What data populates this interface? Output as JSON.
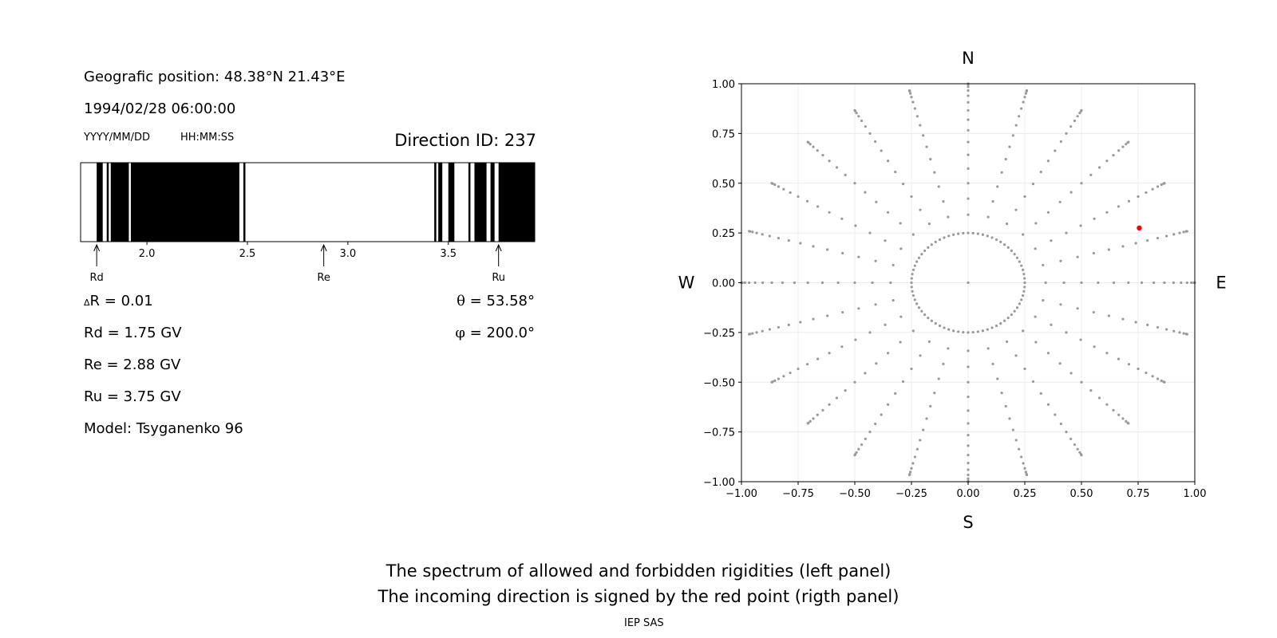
{
  "left_panel": {
    "position": "Geografic position: 48.38°N 21.43°E",
    "datetime": "1994/02/28 06:00:00",
    "date_format": "YYYY/MM/DD",
    "time_format": "HH:MM:SS",
    "direction_id": "Direction ID: 237",
    "delta_r": {
      "symbol": "Δ",
      "text": "R = 0.01"
    },
    "theta": {
      "symbol": "θ",
      "text": " = 53.58°"
    },
    "phi": {
      "symbol": "φ",
      "text": " = 200.0°"
    },
    "rd": "Rd = 1.75 GV",
    "re": "Re = 2.88 GV",
    "ru": "Ru = 3.75 GV",
    "model": "Model: Tsyganenko 96"
  },
  "footer": {
    "line1": "The spectrum of allowed and forbidden rigidities (left panel)",
    "line2": "The incoming direction is signed by the red point (rigth panel)",
    "credit": "IEP SAS"
  },
  "colors": {
    "forbidden": "#000000",
    "allowed": "#ffffff",
    "grid_points": "#999999",
    "selected_point": "#ff0000"
  },
  "chart_data": [
    {
      "type": "bar",
      "name": "rigidity-spectrum",
      "xlim": [
        1.67,
        3.93
      ],
      "ticks": [
        2.0,
        2.5,
        3.0,
        3.5
      ],
      "tick_labels": [
        "2.0",
        "2.5",
        "3.0",
        "3.5"
      ],
      "forbidden_bands": [
        [
          1.75,
          1.78
        ],
        [
          1.8,
          1.81
        ],
        [
          1.82,
          1.91
        ],
        [
          1.92,
          2.46
        ],
        [
          2.48,
          2.49
        ],
        [
          3.43,
          3.44
        ],
        [
          3.45,
          3.47
        ],
        [
          3.5,
          3.53
        ],
        [
          3.6,
          3.61
        ],
        [
          3.63,
          3.69
        ],
        [
          3.71,
          3.73
        ],
        [
          3.75,
          3.93
        ]
      ],
      "markers": [
        {
          "label": "Rd",
          "value": 1.75
        },
        {
          "label": "Re",
          "value": 2.88
        },
        {
          "label": "Ru",
          "value": 3.75
        }
      ]
    },
    {
      "type": "scatter",
      "name": "incoming-directions",
      "xlim": [
        -1.0,
        1.0
      ],
      "ylim": [
        -1.0,
        1.0
      ],
      "ticks": [
        -1.0,
        -0.75,
        -0.5,
        -0.25,
        0.0,
        0.25,
        0.5,
        0.75,
        1.0
      ],
      "tick_labels": [
        "−1.00",
        "−0.75",
        "−0.50",
        "−0.25",
        "0.00",
        "0.25",
        "0.50",
        "0.75",
        "1.00"
      ],
      "grid": true,
      "directions": {
        "top": "N",
        "bottom": "S",
        "left": "W",
        "right": "E"
      },
      "grid_pattern": {
        "zenith_spacing_deg": 5,
        "max_zenith_deg": 90,
        "inner_ring_azimuth_step_deg": 5,
        "outer_azimuth_step_deg": 15,
        "inner_ring_radius": 0.25
      },
      "selected_point": {
        "x": 0.755,
        "y": 0.275
      }
    }
  ]
}
